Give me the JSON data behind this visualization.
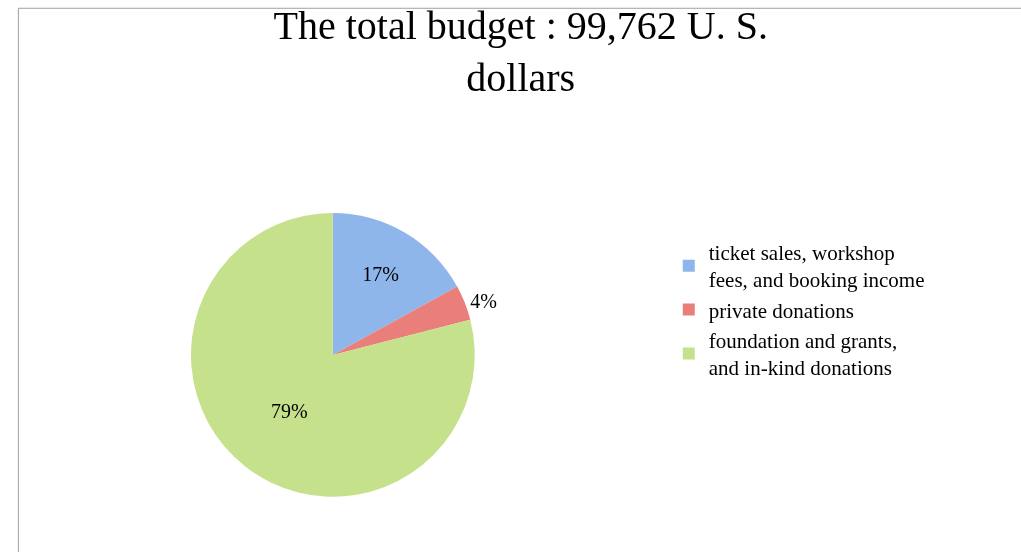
{
  "chart_data": {
    "type": "pie",
    "title": "The total budget : 99,762 U. S. dollars",
    "categories": [
      "ticket sales, workshop fees, and booking income",
      "private donations",
      "foundation and grants, and in-kind donations"
    ],
    "values": [
      17,
      4,
      79
    ],
    "colors": [
      "#8fb6ea",
      "#ea7e7b",
      "#c6e18c"
    ],
    "value_labels": [
      "17%",
      "4%",
      "79%"
    ],
    "legend": "right"
  }
}
